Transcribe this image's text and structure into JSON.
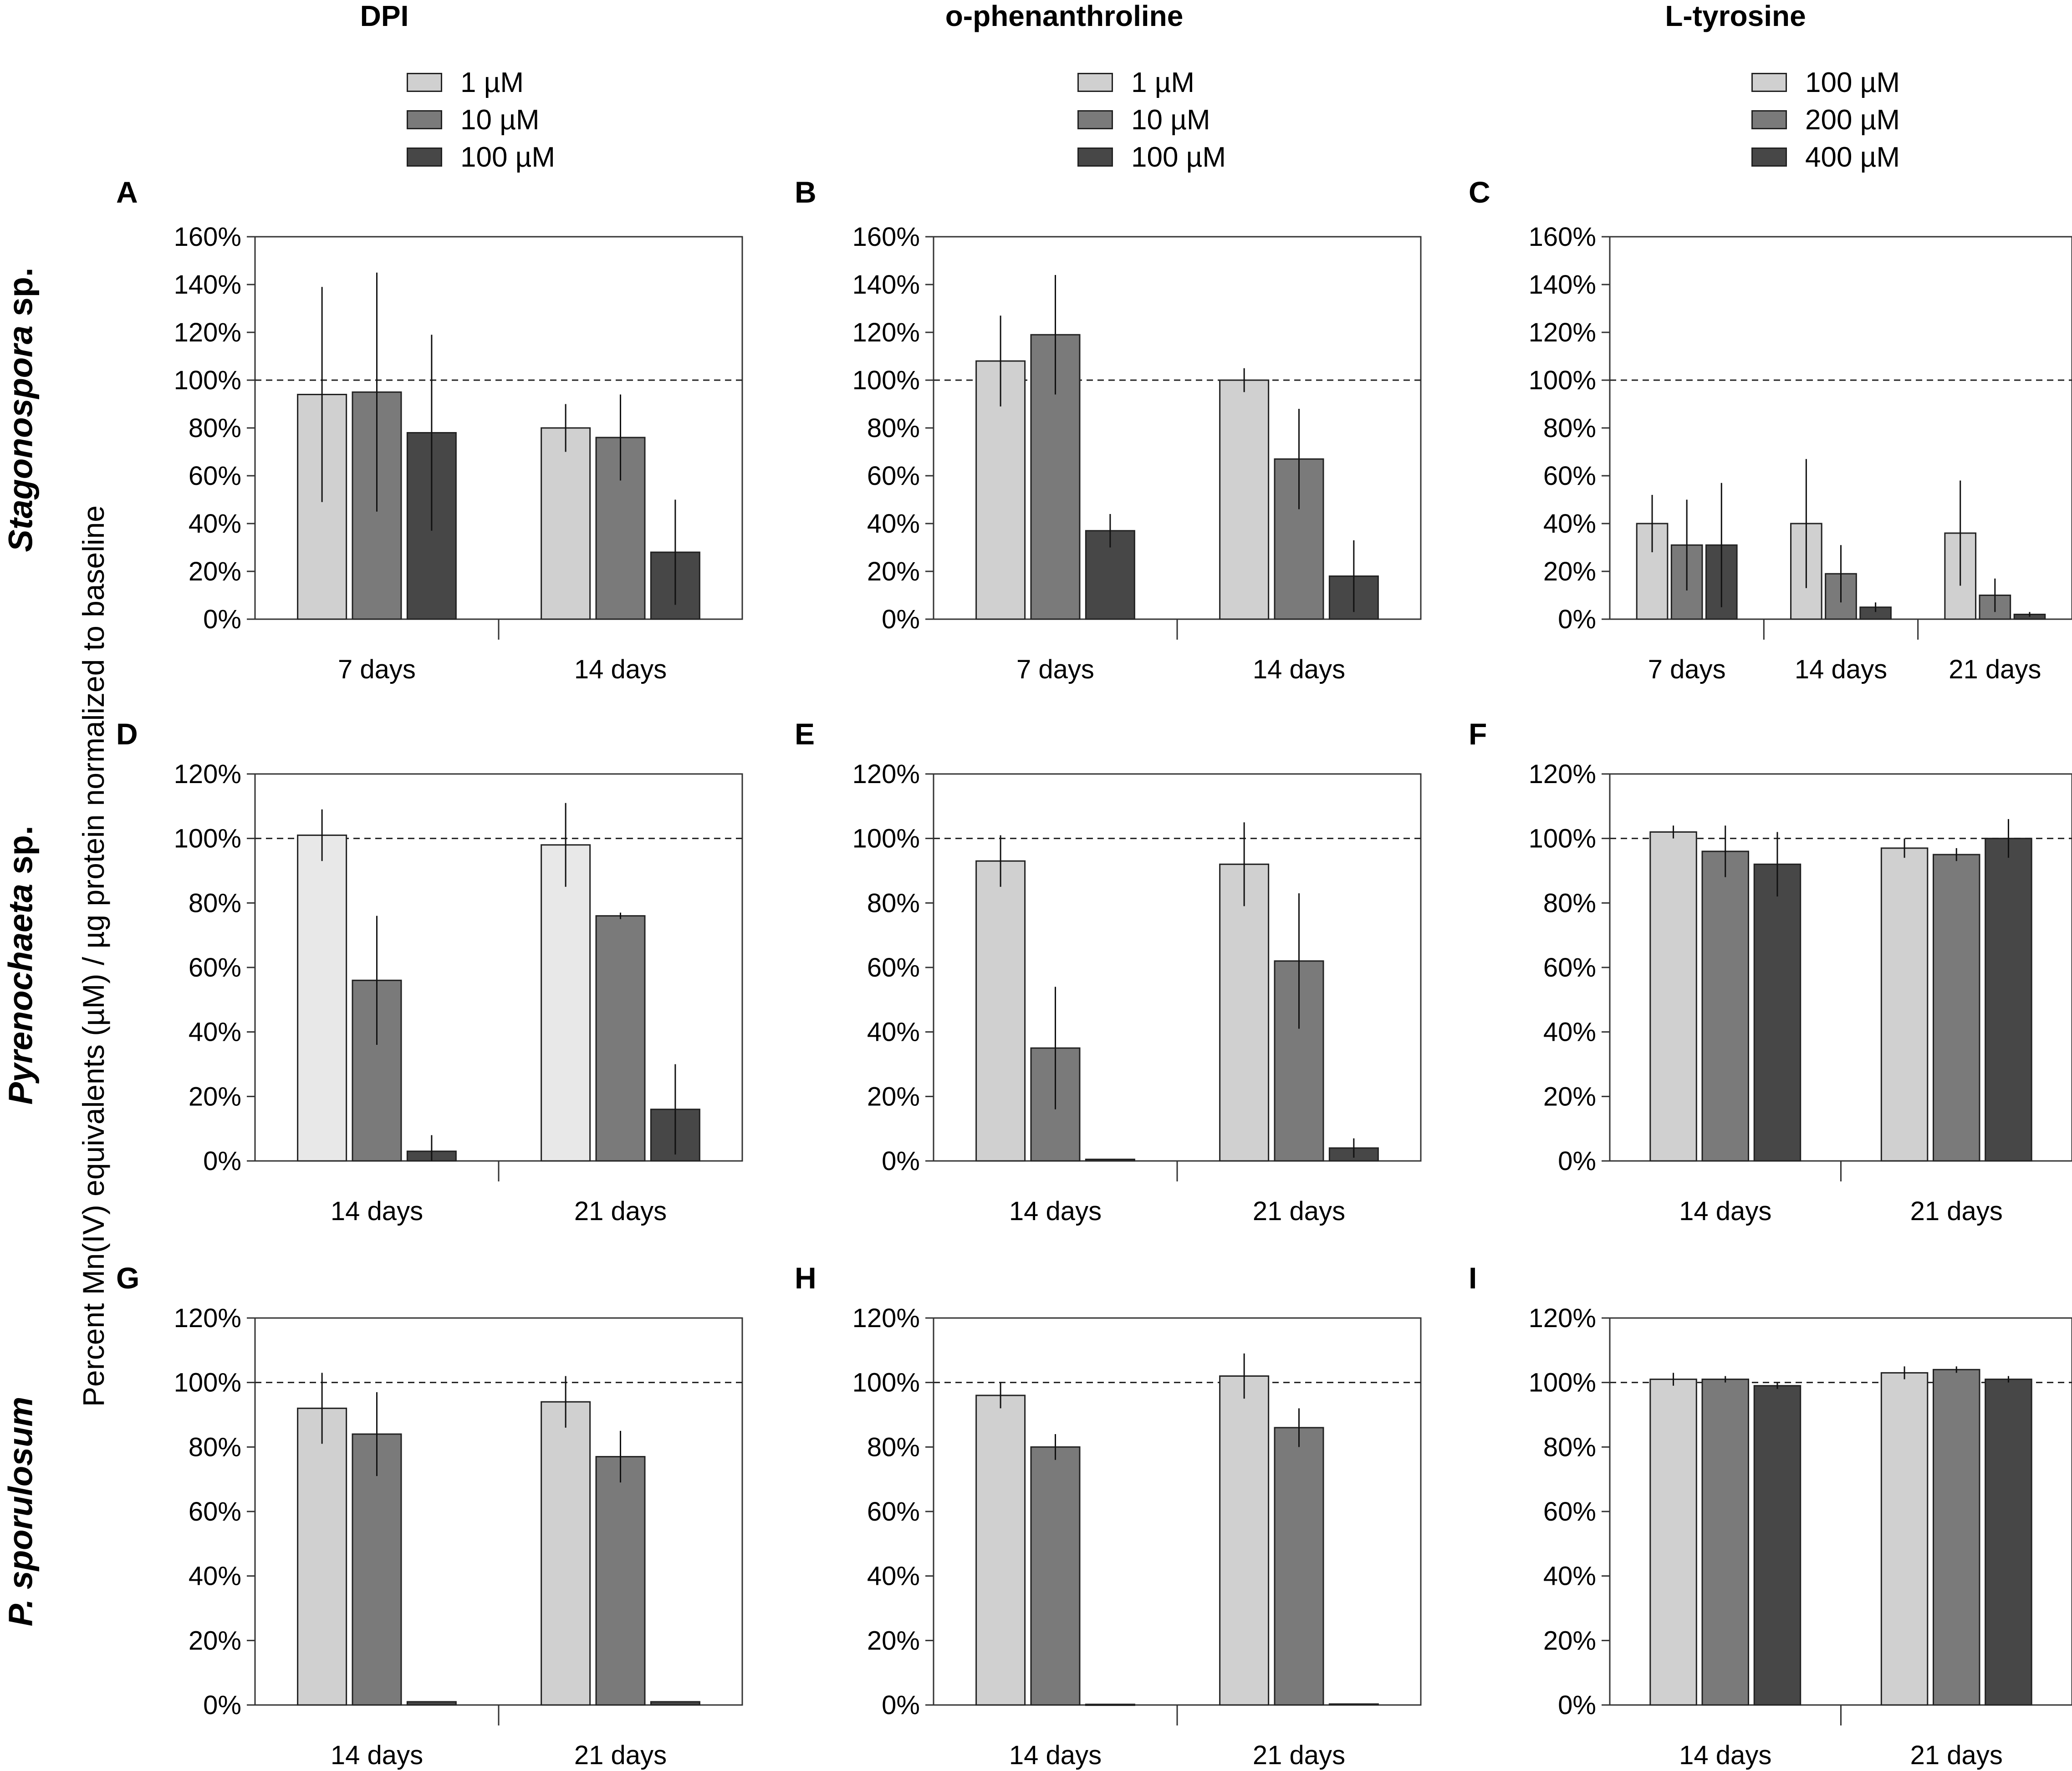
{
  "y_axis_title": "Percent Mn(IV) equivalents (µM) / µg protein normalized to baseline",
  "row_labels": [
    "Stagonospora sp.",
    "Pyrenochaeta sp.",
    "P. sporulosum"
  ],
  "columns": [
    {
      "title": "DPI",
      "legend": [
        "1 µM",
        "10 µM",
        "100 µM"
      ]
    },
    {
      "title": "o-phenanthroline",
      "legend": [
        "1 µM",
        "10 µM",
        "100 µM"
      ]
    },
    {
      "title": "L-tyrosine",
      "legend": [
        "100 µM",
        "200 µM",
        "400 µM"
      ]
    }
  ],
  "colors": {
    "light": "#d0d0d0",
    "mid": "#7a7a7a",
    "dark": "#474747",
    "lightest": "#e8e8e8"
  },
  "chart_data": [
    {
      "panel": "A",
      "type": "bar",
      "ylim": [
        0,
        160
      ],
      "yticks": [
        0,
        20,
        40,
        60,
        80,
        100,
        120,
        140,
        160
      ],
      "reference_line": 100,
      "categories": [
        "7 days",
        "14 days"
      ],
      "series": [
        {
          "name": "1 µM",
          "values": [
            94,
            80
          ],
          "errors": [
            45,
            10
          ]
        },
        {
          "name": "10 µM",
          "values": [
            95,
            76
          ],
          "errors": [
            50,
            18
          ]
        },
        {
          "name": "100 µM",
          "values": [
            78,
            28
          ],
          "errors": [
            41,
            22
          ]
        }
      ]
    },
    {
      "panel": "B",
      "type": "bar",
      "ylim": [
        0,
        160
      ],
      "yticks": [
        0,
        20,
        40,
        60,
        80,
        100,
        120,
        140,
        160
      ],
      "reference_line": 100,
      "categories": [
        "7 days",
        "14 days"
      ],
      "series": [
        {
          "name": "1 µM",
          "values": [
            108,
            100
          ],
          "errors": [
            19,
            5
          ]
        },
        {
          "name": "10 µM",
          "values": [
            119,
            67
          ],
          "errors": [
            25,
            21
          ]
        },
        {
          "name": "100 µM",
          "values": [
            37,
            18
          ],
          "errors": [
            7,
            15
          ]
        }
      ]
    },
    {
      "panel": "C",
      "type": "bar",
      "ylim": [
        0,
        160
      ],
      "yticks": [
        0,
        20,
        40,
        60,
        80,
        100,
        120,
        140,
        160
      ],
      "reference_line": 100,
      "categories": [
        "7 days",
        "14 days",
        "21 days"
      ],
      "series": [
        {
          "name": "100 µM",
          "values": [
            40,
            40,
            36
          ],
          "errors": [
            12,
            27,
            22
          ]
        },
        {
          "name": "200 µM",
          "values": [
            31,
            19,
            10
          ],
          "errors": [
            19,
            12,
            7
          ]
        },
        {
          "name": "400 µM",
          "values": [
            31,
            5,
            2
          ],
          "errors": [
            26,
            2,
            1
          ]
        }
      ]
    },
    {
      "panel": "D",
      "type": "bar",
      "ylim": [
        0,
        120
      ],
      "yticks": [
        0,
        20,
        40,
        60,
        80,
        100,
        120
      ],
      "reference_line": 100,
      "categories": [
        "14 days",
        "21 days"
      ],
      "series": [
        {
          "name": "1 µM",
          "values": [
            101,
            98
          ],
          "errors": [
            8,
            13
          ]
        },
        {
          "name": "10 µM",
          "values": [
            56,
            76
          ],
          "errors": [
            20,
            1
          ]
        },
        {
          "name": "100 µM",
          "values": [
            3,
            16
          ],
          "errors": [
            5,
            14
          ]
        }
      ]
    },
    {
      "panel": "E",
      "type": "bar",
      "ylim": [
        0,
        120
      ],
      "yticks": [
        0,
        20,
        40,
        60,
        80,
        100,
        120
      ],
      "reference_line": 100,
      "categories": [
        "14 days",
        "21 days"
      ],
      "series": [
        {
          "name": "1 µM",
          "values": [
            93,
            92
          ],
          "errors": [
            8,
            13
          ]
        },
        {
          "name": "10 µM",
          "values": [
            35,
            62
          ],
          "errors": [
            19,
            21
          ]
        },
        {
          "name": "100 µM",
          "values": [
            0.5,
            4
          ],
          "errors": [
            0,
            3
          ]
        }
      ]
    },
    {
      "panel": "F",
      "type": "bar",
      "ylim": [
        0,
        120
      ],
      "yticks": [
        0,
        20,
        40,
        60,
        80,
        100,
        120
      ],
      "reference_line": 100,
      "categories": [
        "14 days",
        "21 days"
      ],
      "series": [
        {
          "name": "100 µM",
          "values": [
            102,
            97
          ],
          "errors": [
            2,
            3
          ]
        },
        {
          "name": "200 µM",
          "values": [
            96,
            95
          ],
          "errors": [
            8,
            2
          ]
        },
        {
          "name": "400 µM",
          "values": [
            92,
            100
          ],
          "errors": [
            10,
            6
          ]
        }
      ]
    },
    {
      "panel": "G",
      "type": "bar",
      "ylim": [
        0,
        120
      ],
      "yticks": [
        0,
        20,
        40,
        60,
        80,
        100,
        120
      ],
      "reference_line": 100,
      "categories": [
        "14 days",
        "21 days"
      ],
      "series": [
        {
          "name": "1 µM",
          "values": [
            92,
            94
          ],
          "errors": [
            11,
            8
          ]
        },
        {
          "name": "10 µM",
          "values": [
            84,
            77
          ],
          "errors": [
            13,
            8
          ]
        },
        {
          "name": "100 µM",
          "values": [
            1,
            1
          ],
          "errors": [
            0,
            0
          ]
        }
      ]
    },
    {
      "panel": "H",
      "type": "bar",
      "ylim": [
        0,
        120
      ],
      "yticks": [
        0,
        20,
        40,
        60,
        80,
        100,
        120
      ],
      "reference_line": 100,
      "categories": [
        "14 days",
        "21 days"
      ],
      "series": [
        {
          "name": "1 µM",
          "values": [
            96,
            102
          ],
          "errors": [
            4,
            7
          ]
        },
        {
          "name": "10 µM",
          "values": [
            80,
            86
          ],
          "errors": [
            4,
            6
          ]
        },
        {
          "name": "100 µM",
          "values": [
            0.2,
            0.3
          ],
          "errors": [
            0,
            0
          ]
        }
      ]
    },
    {
      "panel": "I",
      "type": "bar",
      "ylim": [
        0,
        120
      ],
      "yticks": [
        0,
        20,
        40,
        60,
        80,
        100,
        120
      ],
      "reference_line": 100,
      "categories": [
        "14 days",
        "21 days"
      ],
      "series": [
        {
          "name": "100 µM",
          "values": [
            101,
            103
          ],
          "errors": [
            2,
            2
          ]
        },
        {
          "name": "200 µM",
          "values": [
            101,
            104
          ],
          "errors": [
            1,
            1
          ]
        },
        {
          "name": "400 µM",
          "values": [
            99,
            101
          ],
          "errors": [
            1,
            1
          ]
        }
      ]
    }
  ]
}
